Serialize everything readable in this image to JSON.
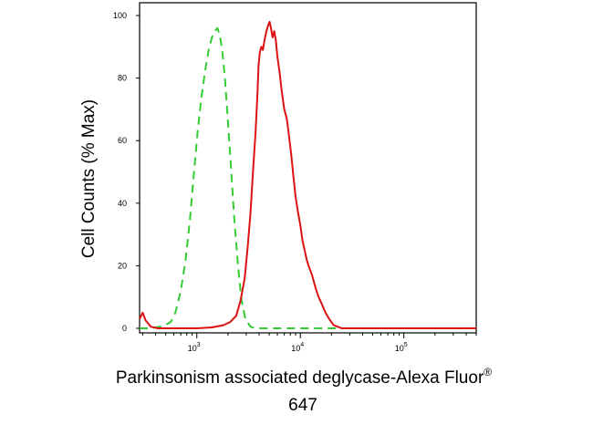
{
  "chart_data": {
    "type": "line",
    "subtype": "flow-cytometry-histogram",
    "x_scale": "log",
    "xlim": [
      280,
      500000
    ],
    "ylim": [
      0,
      100
    ],
    "y_ticks": [
      0,
      20,
      40,
      60,
      80,
      100
    ],
    "y_tick_labels": [
      "0",
      "20",
      "40",
      "60",
      "80",
      "100"
    ],
    "x_ticks": [
      {
        "value": 1000,
        "base": "10",
        "exp": "3"
      },
      {
        "value": 10000,
        "base": "10",
        "exp": "4"
      },
      {
        "value": 100000,
        "base": "10",
        "exp": "5"
      }
    ],
    "ylabel": "Cell Counts (% Max)",
    "xlabel_line1": "Parkinsonism associated deglycase-Alexa Fluor",
    "xlabel_sup": "®",
    "xlabel_line2": "647",
    "grid": false,
    "legend": "none",
    "colors": {
      "green": "#33cc33",
      "red": "#dd1111"
    },
    "series": [
      {
        "color": "#33cc33",
        "style": "dashed",
        "points": [
          [
            280,
            0
          ],
          [
            350,
            0
          ],
          [
            400,
            0.3
          ],
          [
            470,
            0.6
          ],
          [
            560,
            2
          ],
          [
            620,
            5
          ],
          [
            700,
            12
          ],
          [
            780,
            22
          ],
          [
            860,
            35
          ],
          [
            940,
            50
          ],
          [
            1020,
            63
          ],
          [
            1100,
            73
          ],
          [
            1200,
            82
          ],
          [
            1300,
            89
          ],
          [
            1400,
            93
          ],
          [
            1500,
            95
          ],
          [
            1580,
            96
          ],
          [
            1660,
            94
          ],
          [
            1760,
            89
          ],
          [
            1880,
            79
          ],
          [
            2000,
            66
          ],
          [
            2150,
            50
          ],
          [
            2300,
            35
          ],
          [
            2500,
            20
          ],
          [
            2700,
            9
          ],
          [
            2950,
            3
          ],
          [
            3300,
            0.5
          ],
          [
            3700,
            0
          ],
          [
            500000,
            0
          ]
        ]
      },
      {
        "color": "#dd1111",
        "style": "solid",
        "points": [
          [
            280,
            3
          ],
          [
            300,
            5
          ],
          [
            320,
            2.5
          ],
          [
            360,
            0.5
          ],
          [
            420,
            0
          ],
          [
            1000,
            0
          ],
          [
            1400,
            0.3
          ],
          [
            1800,
            1
          ],
          [
            2100,
            2
          ],
          [
            2400,
            4
          ],
          [
            2650,
            9
          ],
          [
            2900,
            16
          ],
          [
            3100,
            26
          ],
          [
            3300,
            37
          ],
          [
            3500,
            51
          ],
          [
            3700,
            63
          ],
          [
            3850,
            75
          ],
          [
            3950,
            84
          ],
          [
            4050,
            88
          ],
          [
            4200,
            90
          ],
          [
            4350,
            89
          ],
          [
            4500,
            92
          ],
          [
            4700,
            95
          ],
          [
            4900,
            97
          ],
          [
            5050,
            98
          ],
          [
            5200,
            96
          ],
          [
            5400,
            93
          ],
          [
            5600,
            95
          ],
          [
            5800,
            92
          ],
          [
            6000,
            87
          ],
          [
            6300,
            82
          ],
          [
            6600,
            76
          ],
          [
            7000,
            70
          ],
          [
            7400,
            67
          ],
          [
            7800,
            61
          ],
          [
            8200,
            55
          ],
          [
            8600,
            48
          ],
          [
            9000,
            42
          ],
          [
            9500,
            37
          ],
          [
            10000,
            33
          ],
          [
            10500,
            28
          ],
          [
            11000,
            25
          ],
          [
            11500,
            22
          ],
          [
            12000,
            20
          ],
          [
            13000,
            17
          ],
          [
            14000,
            13
          ],
          [
            15000,
            10
          ],
          [
            16000,
            8
          ],
          [
            17500,
            5
          ],
          [
            19000,
            3
          ],
          [
            21000,
            1
          ],
          [
            23000,
            0.5
          ],
          [
            25000,
            0
          ],
          [
            500000,
            0
          ]
        ]
      }
    ]
  }
}
